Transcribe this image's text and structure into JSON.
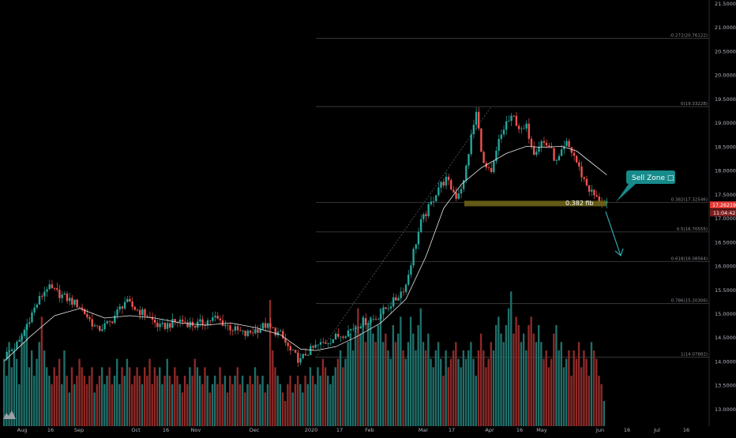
{
  "chart_data": {
    "type": "candlestick",
    "title": "",
    "xlabel": "",
    "ylabel": "",
    "ylim": [
      12.8,
      21.5
    ],
    "grid": false,
    "y_ticks": [
      "21.50000",
      "21.00000",
      "20.50000",
      "20.00000",
      "19.50000",
      "19.00000",
      "18.50000",
      "18.00000",
      "17.50000",
      "17.00000",
      "16.50000",
      "16.00000",
      "15.50000",
      "15.00000",
      "14.50000",
      "14.00000",
      "13.50000",
      "13.00000"
    ],
    "x_ticks": [
      "Aug",
      "16",
      "Sep",
      "Oct",
      "16",
      "Nov",
      "Dec",
      "2020",
      "17",
      "Feb",
      "Mar",
      "17",
      "Apr",
      "16",
      "May",
      "Jun",
      "16",
      "Jul",
      "16"
    ],
    "price_now": "17.26219",
    "countdown": "11:04:42",
    "price_path": [
      [
        0,
        14.1
      ],
      [
        6,
        14.4
      ],
      [
        10,
        14.9
      ],
      [
        14,
        15.3
      ],
      [
        17,
        15.55
      ],
      [
        22,
        15.4
      ],
      [
        30,
        15.15
      ],
      [
        37,
        14.65
      ],
      [
        42,
        14.8
      ],
      [
        48,
        15.25
      ],
      [
        52,
        15.1
      ],
      [
        57,
        14.95
      ],
      [
        62,
        14.7
      ],
      [
        70,
        14.85
      ],
      [
        76,
        14.75
      ],
      [
        84,
        14.9
      ],
      [
        90,
        14.7
      ],
      [
        96,
        14.55
      ],
      [
        104,
        14.75
      ],
      [
        110,
        14.55
      ],
      [
        114,
        14.2
      ],
      [
        118,
        14.0
      ],
      [
        120,
        14.15
      ],
      [
        124,
        14.3
      ],
      [
        130,
        14.45
      ],
      [
        136,
        14.6
      ],
      [
        142,
        14.8
      ],
      [
        148,
        14.9
      ],
      [
        152,
        15.1
      ],
      [
        156,
        15.3
      ],
      [
        160,
        15.6
      ],
      [
        163,
        16.3
      ],
      [
        166,
        16.9
      ],
      [
        170,
        17.3
      ],
      [
        173,
        17.65
      ],
      [
        176,
        17.8
      ],
      [
        180,
        17.45
      ],
      [
        183,
        17.75
      ],
      [
        186,
        18.7
      ],
      [
        188,
        19.2
      ],
      [
        191,
        18.1
      ],
      [
        194,
        17.9
      ],
      [
        197,
        18.6
      ],
      [
        200,
        19.0
      ],
      [
        203,
        19.1
      ],
      [
        206,
        18.8
      ],
      [
        208,
        18.9
      ],
      [
        211,
        18.4
      ],
      [
        214,
        18.6
      ],
      [
        217,
        18.5
      ],
      [
        220,
        18.15
      ],
      [
        224,
        18.55
      ],
      [
        227,
        18.3
      ],
      [
        230,
        17.9
      ],
      [
        233,
        17.6
      ],
      [
        236,
        17.4
      ],
      [
        240,
        17.26
      ]
    ],
    "moving_average": [
      [
        0,
        14.0
      ],
      [
        10,
        14.5
      ],
      [
        20,
        14.95
      ],
      [
        30,
        15.1
      ],
      [
        40,
        14.9
      ],
      [
        50,
        14.95
      ],
      [
        60,
        14.9
      ],
      [
        70,
        14.8
      ],
      [
        80,
        14.75
      ],
      [
        90,
        14.8
      ],
      [
        100,
        14.7
      ],
      [
        110,
        14.55
      ],
      [
        118,
        14.25
      ],
      [
        124,
        14.22
      ],
      [
        132,
        14.3
      ],
      [
        140,
        14.5
      ],
      [
        150,
        14.8
      ],
      [
        160,
        15.3
      ],
      [
        168,
        16.2
      ],
      [
        175,
        17.2
      ],
      [
        182,
        17.7
      ],
      [
        190,
        18.05
      ],
      [
        200,
        18.35
      ],
      [
        208,
        18.5
      ],
      [
        214,
        18.48
      ],
      [
        222,
        18.5
      ],
      [
        228,
        18.4
      ],
      [
        234,
        18.15
      ],
      [
        240,
        17.9
      ]
    ],
    "volume_scale": [
      0,
      15
    ],
    "volume": [
      8,
      6,
      10,
      7,
      9,
      8,
      5,
      11,
      10,
      12,
      7,
      9,
      6,
      8,
      10,
      13,
      9,
      7,
      6,
      5,
      7,
      6,
      8,
      5,
      9,
      6,
      4,
      7,
      5,
      6,
      8,
      7,
      6,
      5,
      6,
      7,
      4,
      5,
      6,
      7,
      5,
      6,
      7,
      5,
      6,
      8,
      5,
      7,
      6,
      8,
      7,
      5,
      6,
      7,
      6,
      5,
      7,
      6,
      8,
      5,
      7,
      6,
      7,
      5,
      6,
      8,
      6,
      5,
      7,
      6,
      5,
      4,
      6,
      5,
      7,
      6,
      8,
      7,
      6,
      5,
      7,
      6,
      4,
      5,
      6,
      5,
      7,
      5,
      6,
      4,
      6,
      5,
      6,
      7,
      5,
      6,
      4,
      5,
      6,
      5,
      7,
      6,
      5,
      6,
      4,
      5,
      15,
      9,
      7,
      6,
      5,
      4,
      3,
      5,
      6,
      4,
      5,
      6,
      5,
      4,
      6,
      5,
      7,
      6,
      5,
      7,
      6,
      8,
      7,
      6,
      5,
      6,
      7,
      8,
      9,
      7,
      8,
      10,
      11,
      9,
      12,
      14,
      11,
      13,
      10,
      12,
      13,
      11,
      10,
      12,
      14,
      10,
      11,
      9,
      8,
      12,
      10,
      11,
      13,
      9,
      8,
      10,
      13,
      11,
      9,
      12,
      14,
      10,
      9,
      11,
      8,
      7,
      9,
      10,
      8,
      6,
      9,
      7,
      8,
      9,
      10,
      8,
      7,
      9,
      8,
      9,
      10,
      8,
      6,
      9,
      11,
      9,
      7,
      8,
      10,
      9,
      12,
      13,
      11,
      10,
      12,
      14,
      16,
      11,
      13,
      12,
      10,
      11,
      9,
      12,
      13,
      11,
      10,
      12,
      10,
      8,
      9,
      7,
      8,
      11,
      12,
      9,
      10,
      7,
      8,
      9,
      6,
      9,
      8,
      10,
      7,
      9,
      8,
      6,
      10,
      9,
      8,
      6,
      5,
      3
    ],
    "fib_levels": [
      {
        "ratio": 0,
        "price": 19.33228,
        "label": "0(19.33228)"
      },
      {
        "ratio": -0.272,
        "price": 20.76122,
        "label": "-0.272(20.76122)"
      },
      {
        "ratio": 0.382,
        "price": 17.32546,
        "label": "0.382(17.32546)"
      },
      {
        "ratio": 0.5,
        "price": 16.70555,
        "label": "0.5(16.70555)"
      },
      {
        "ratio": 0.618,
        "price": 16.08564,
        "label": "0.618(16.08564)"
      },
      {
        "ratio": 0.786,
        "price": 15.20306,
        "label": "0.786(15.20306)"
      },
      {
        "ratio": 1,
        "price": 14.07882,
        "label": "1(14.07882)"
      }
    ],
    "annotations": {
      "fib_band_label": "0.382 fib",
      "callout": "Sell Zone ",
      "callout_icon": "□"
    },
    "colors": {
      "up": "#26a69a",
      "down": "#ef5350",
      "volume_up": "#1f6f6a",
      "volume_down": "#8c2a28",
      "ma_line": "#e8e8e8",
      "fib_line": "#555555",
      "fib_band": "#6b6316",
      "callout_bg": "#178a8a",
      "arrow": "#2aa3a8",
      "price_tag": "#e53935",
      "axis_text": "#b2b5be"
    }
  }
}
